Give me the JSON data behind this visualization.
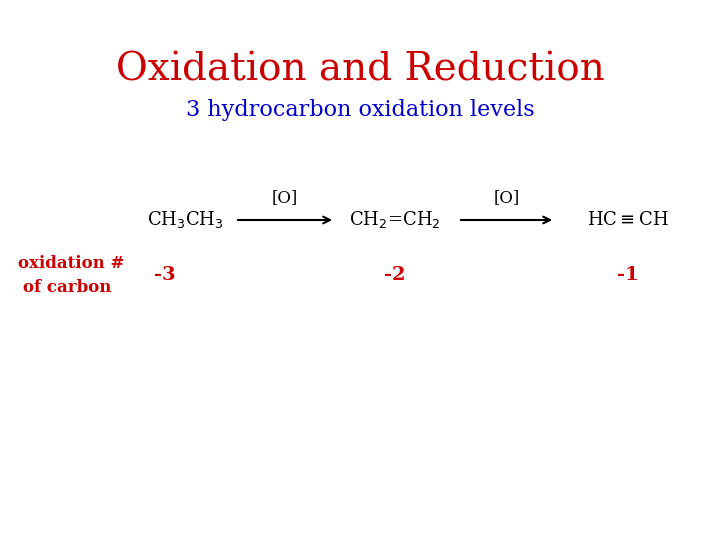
{
  "title": "Oxidation and Reduction",
  "subtitle": "3 hydrocarbon oxidation levels",
  "title_color": "#cc0000",
  "subtitle_color": "#0000cc",
  "title_fontsize": 28,
  "subtitle_fontsize": 16,
  "background_color": "#ffffff",
  "ox1": "-3",
  "ox2": "-2",
  "ox3": "-1",
  "label1": "oxidation #",
  "label2": "of carbon",
  "arrow_label": "[O]",
  "mol_color": "#000000",
  "ox_color": "#cc0000",
  "label_color": "#cc0000",
  "arrow_color": "#000000",
  "mol_fontsize": 13,
  "ox_fontsize": 14,
  "label_fontsize": 12,
  "arrow_label_fontsize": 12
}
